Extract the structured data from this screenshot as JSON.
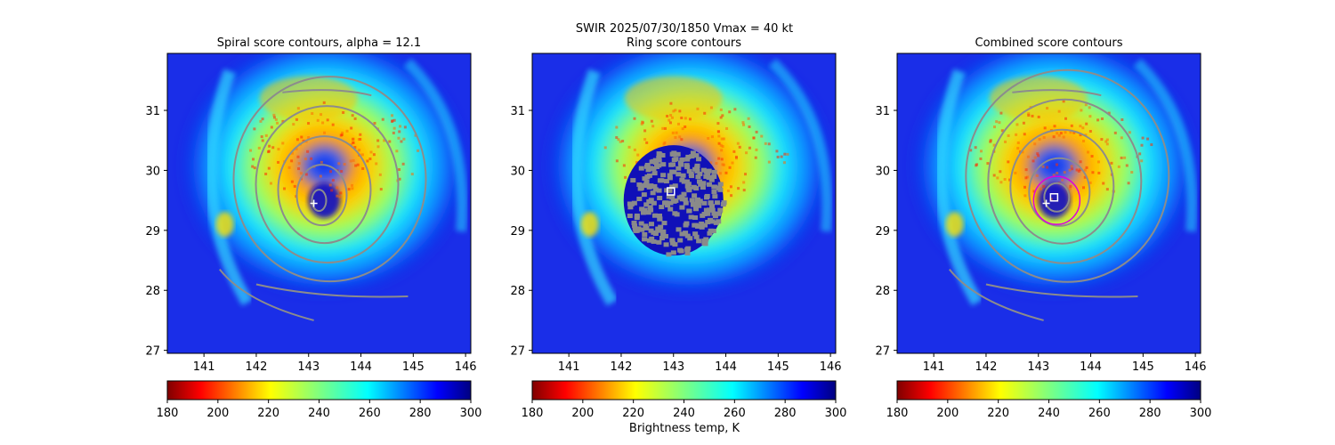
{
  "figure": {
    "suptitle_line1": "SWIR  2025/07/30/1850    Vmax = 40 kt",
    "colorbar_label": "Brightness temp, K"
  },
  "colors": {
    "contour": "#8c8c8c",
    "marker": "#ffffff",
    "combined_circle": "#dd00dd",
    "ring_overlay": "#8a8a8a"
  },
  "chart_data": [
    {
      "type": "heatmap",
      "title": "Spiral score contours, alpha = 12.1",
      "xlim": [
        140.3,
        146.1
      ],
      "ylim": [
        26.95,
        31.95
      ],
      "xticks": [
        "141",
        "142",
        "143",
        "144",
        "145",
        "146"
      ],
      "yticks": [
        "27",
        "28",
        "29",
        "30",
        "31"
      ],
      "colorbar": {
        "ticks": [
          "180",
          "200",
          "220",
          "240",
          "260",
          "280",
          "300"
        ],
        "range": [
          180,
          300
        ],
        "colormap": "jet_r"
      },
      "center_marker": {
        "lon": 143.1,
        "lat": 29.45,
        "symbol": "+"
      },
      "contours": "spiral"
    },
    {
      "type": "heatmap",
      "title": "Ring score contours",
      "xlim": [
        140.3,
        146.1
      ],
      "ylim": [
        26.95,
        31.95
      ],
      "xticks": [
        "141",
        "142",
        "143",
        "144",
        "145",
        "146"
      ],
      "yticks": [
        "27",
        "28",
        "29",
        "30",
        "31"
      ],
      "colorbar": {
        "ticks": [
          "180",
          "200",
          "220",
          "240",
          "260",
          "280",
          "300"
        ],
        "range": [
          180,
          300
        ],
        "colormap": "jet_r"
      },
      "center_marker": {
        "lon": 142.95,
        "lat": 29.65,
        "symbol": "square"
      },
      "contours": "ring"
    },
    {
      "type": "heatmap",
      "title": "Combined score contours",
      "xlim": [
        140.3,
        146.1
      ],
      "ylim": [
        26.95,
        31.95
      ],
      "xticks": [
        "141",
        "142",
        "143",
        "144",
        "145",
        "146"
      ],
      "yticks": [
        "27",
        "28",
        "29",
        "30",
        "31"
      ],
      "colorbar": {
        "ticks": [
          "180",
          "200",
          "220",
          "240",
          "260",
          "280",
          "300"
        ],
        "range": [
          180,
          300
        ],
        "colormap": "jet_r"
      },
      "center_marker": {
        "lon": 143.3,
        "lat": 29.55,
        "symbol": "square"
      },
      "secondary_marker": {
        "lon": 143.15,
        "lat": 29.45,
        "symbol": "+"
      },
      "contours": "spiral"
    }
  ]
}
